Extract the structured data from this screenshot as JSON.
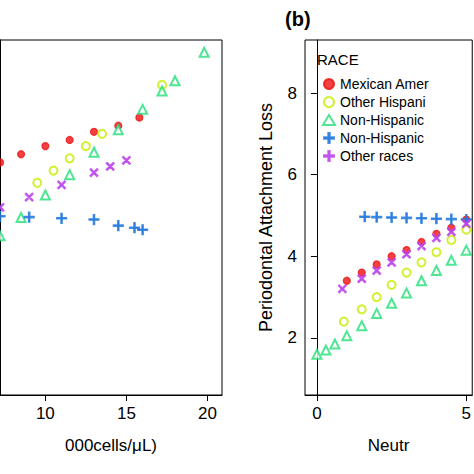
{
  "chart_data": [
    {
      "type": "scatter",
      "x_label": "000cells/μL)",
      "xlim": [
        7.2,
        20.9
      ],
      "xticks": [
        10,
        15,
        20
      ],
      "ylim": [
        0.6,
        9.3
      ],
      "tick_labels": "x",
      "grid": false,
      "series": [
        {
          "name": "Mexican Amer",
          "color": "#ee1111",
          "marker": "circle",
          "x": [
            7.2,
            8.5,
            10,
            11.5,
            13,
            14.5,
            15.8
          ],
          "values": [
            6.3,
            6.5,
            6.7,
            6.85,
            7.05,
            7.2,
            7.4
          ]
        },
        {
          "name": "Other Hispani",
          "color": "#c8ee00",
          "marker": "open_circle",
          "x": [
            9.5,
            10.5,
            11.5,
            12.5,
            13.5,
            17.2
          ],
          "values": [
            5.8,
            6.1,
            6.4,
            6.7,
            7.0,
            8.2
          ]
        },
        {
          "name": "Non-Hispanic",
          "color": "#22e077",
          "marker": "open_triangle",
          "x": [
            7.2,
            8.5,
            10,
            11.5,
            13,
            14.5,
            16,
            17.2,
            18,
            19.8
          ],
          "values": [
            4.5,
            4.95,
            5.5,
            6.0,
            6.55,
            7.1,
            7.6,
            8.05,
            8.3,
            9.0
          ]
        },
        {
          "name": "Non-Hispanic ",
          "color": "#2277dd",
          "marker": "plus",
          "x": [
            7.2,
            9,
            11,
            13,
            14.5,
            15.5,
            16
          ],
          "values": [
            4.98,
            4.96,
            4.93,
            4.9,
            4.75,
            4.7,
            4.65
          ]
        },
        {
          "name": "Other races",
          "color": "#bb44ee",
          "marker": "x",
          "x": [
            7.2,
            9,
            11,
            13,
            14,
            15
          ],
          "values": [
            5.2,
            5.45,
            5.75,
            6.05,
            6.2,
            6.35
          ]
        }
      ]
    },
    {
      "type": "scatter",
      "title": "(b)",
      "x_label": "Neutr",
      "y_label": "Periodontal Attachment Loss",
      "legend_title": "RACE",
      "legend": "top-left",
      "xlim": [
        -0.4,
        5.2
      ],
      "xticks": [
        0,
        5
      ],
      "ylim": [
        0.6,
        9.3
      ],
      "yticks": [
        2,
        4,
        6,
        8
      ],
      "grid": false,
      "series": [
        {
          "name": "Mexican Amer",
          "color": "#ee1111",
          "marker": "circle",
          "x": [
            1,
            1.5,
            2,
            2.5,
            3,
            3.5,
            4,
            4.5,
            5
          ],
          "values": [
            3.4,
            3.6,
            3.8,
            4.0,
            4.15,
            4.35,
            4.55,
            4.7,
            4.9
          ]
        },
        {
          "name": "Other Hispani",
          "color": "#c8ee00",
          "marker": "open_circle",
          "x": [
            0.9,
            1.5,
            2,
            2.5,
            3,
            3.5,
            4,
            4.5,
            5
          ],
          "values": [
            2.4,
            2.7,
            3.0,
            3.3,
            3.6,
            3.85,
            4.1,
            4.4,
            4.65
          ]
        },
        {
          "name": "Non-Hispanic",
          "color": "#22e077",
          "marker": "open_triangle",
          "x": [
            0,
            0.3,
            0.6,
            1,
            1.5,
            2,
            2.5,
            3,
            3.5,
            4,
            4.5,
            5
          ],
          "values": [
            1.6,
            1.7,
            1.85,
            2.05,
            2.3,
            2.6,
            2.85,
            3.1,
            3.4,
            3.65,
            3.9,
            4.15
          ]
        },
        {
          "name": "Non-Hispanic ",
          "color": "#2277dd",
          "marker": "plus",
          "x": [
            1.6,
            2,
            2.5,
            3,
            3.5,
            4,
            4.5,
            5
          ],
          "values": [
            4.97,
            4.96,
            4.95,
            4.94,
            4.93,
            4.92,
            4.91,
            4.9
          ]
        },
        {
          "name": "Other races",
          "color": "#bb44ee",
          "marker": "x",
          "x": [
            0.85,
            1.5,
            2,
            2.5,
            3,
            3.5,
            4,
            4.5,
            5
          ],
          "values": [
            3.2,
            3.45,
            3.65,
            3.85,
            4.05,
            4.25,
            4.45,
            4.6,
            4.8
          ]
        }
      ]
    }
  ]
}
